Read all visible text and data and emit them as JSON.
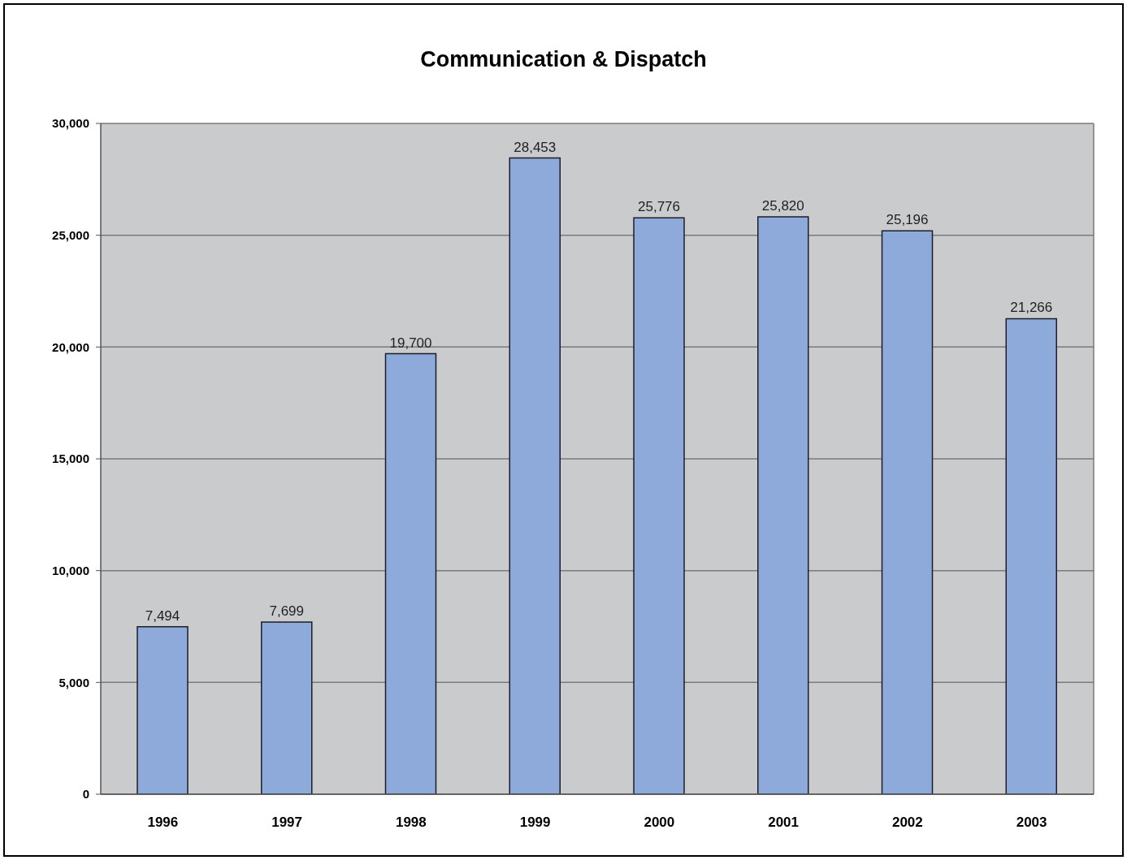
{
  "chart_data": {
    "type": "bar",
    "title": "Communication & Dispatch",
    "categories": [
      "1996",
      "1997",
      "1998",
      "1999",
      "2000",
      "2001",
      "2002",
      "2003"
    ],
    "values": [
      7494,
      7699,
      19700,
      28453,
      25776,
      25820,
      25196,
      21266
    ],
    "value_labels": [
      "7,494",
      "7,699",
      "19,700",
      "28,453",
      "25,776",
      "25,820",
      "25,196",
      "21,266"
    ],
    "color": "#8eaadb",
    "ylim": [
      0,
      30000
    ],
    "yticks": [
      0,
      {
        "value": 5000,
        "label": "5,000"
      },
      {
        "value": 10000,
        "label": "10,000"
      },
      {
        "value": 15000,
        "label": "15,000"
      },
      {
        "value": 20000,
        "label": "20,000"
      },
      {
        "value": 25000,
        "label": "25,000"
      },
      {
        "value": 30000,
        "label": "30,000"
      }
    ],
    "grid": "y"
  }
}
